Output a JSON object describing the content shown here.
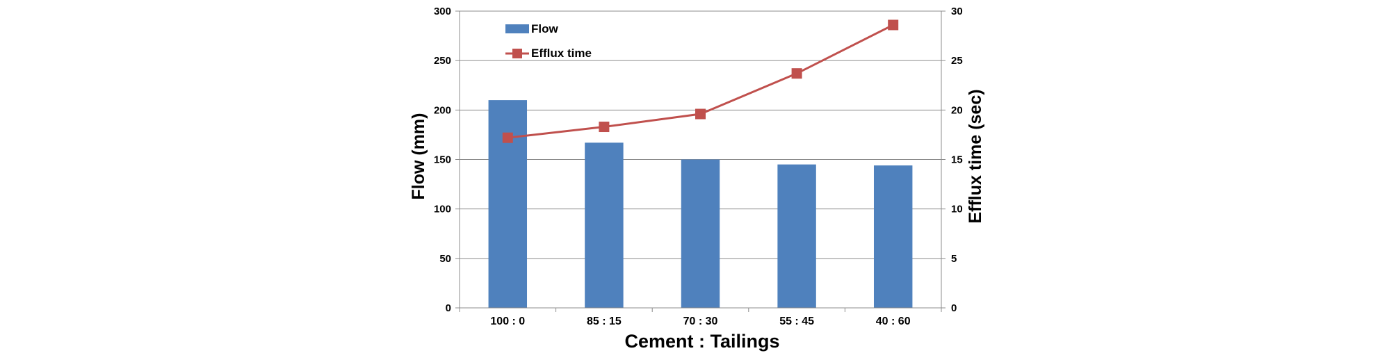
{
  "chart_data": {
    "type": "bar",
    "categories": [
      "100 : 0",
      "85 : 15",
      "70 : 30",
      "55 : 45",
      "40 : 60"
    ],
    "series": [
      {
        "name": "Flow",
        "kind": "bar",
        "axis": "left",
        "values": [
          210,
          167,
          150,
          145,
          144
        ],
        "color": "#4F81BD"
      },
      {
        "name": "Efflux time",
        "kind": "line",
        "axis": "right",
        "marker": "square",
        "values": [
          17.2,
          18.3,
          19.6,
          23.7,
          28.6
        ],
        "color": "#C0504D"
      }
    ],
    "xlabel": "Cement : Tailings",
    "ylabel": "Flow (mm)",
    "y2label": "Efflux time (sec)",
    "ylim": [
      0,
      300
    ],
    "y2lim": [
      0,
      30
    ],
    "yticks": [
      "0",
      "50",
      "100",
      "150",
      "200",
      "250",
      "300"
    ],
    "y2ticks": [
      "0",
      "5",
      "10",
      "15",
      "20",
      "25",
      "30"
    ],
    "grid": true,
    "legend": "top-left"
  }
}
